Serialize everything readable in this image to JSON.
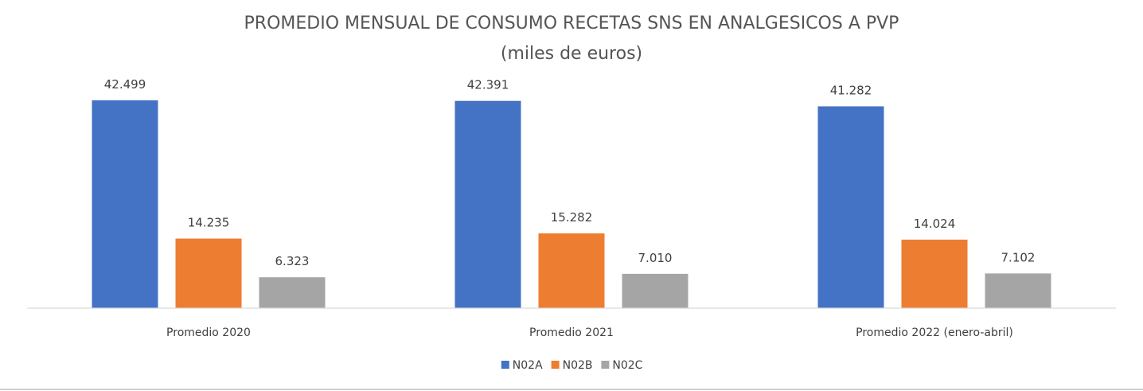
{
  "chart_data": {
    "type": "bar",
    "title": "PROMEDIO MENSUAL DE CONSUMO RECETAS SNS EN ANALGESICOS A PVP",
    "subtitle": "(miles de euros)",
    "categories": [
      "Promedio 2020",
      "Promedio 2021",
      "Promedio 2022 (enero-abril)"
    ],
    "series": [
      {
        "name": "N02A",
        "color": "#4472C4",
        "values": [
          42499,
          42391,
          41282
        ],
        "labels": [
          "42.499",
          "42.391",
          "41.282"
        ]
      },
      {
        "name": "N02B",
        "color": "#ED7D31",
        "values": [
          14235,
          15282,
          14024
        ],
        "labels": [
          "14.235",
          "15.282",
          "14.024"
        ]
      },
      {
        "name": "N02C",
        "color": "#A5A5A5",
        "values": [
          6323,
          7010,
          7102
        ],
        "labels": [
          "6.323",
          "7.010",
          "7.102"
        ]
      }
    ],
    "ylim": [
      0,
      42499
    ],
    "grid": false,
    "legend_position": "bottom",
    "data_labels": true,
    "axis_color": "#D9D9D9"
  }
}
